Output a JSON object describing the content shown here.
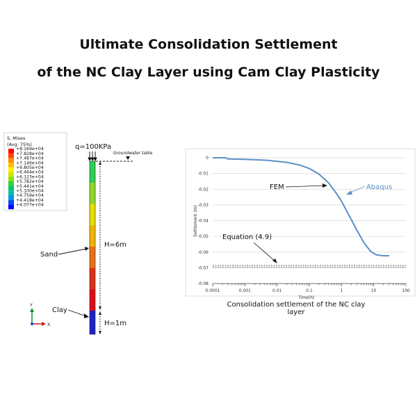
{
  "title": {
    "line1": "Ultimate Consolidation Settlement",
    "line2": "of the NC Clay Layer using Cam Clay Plasticity"
  },
  "legend": {
    "header": "S, Mises",
    "subheader": "(Avg: 75%)",
    "values": [
      "+8.169e+04",
      "+7.828e+04",
      "+7.487e+04",
      "+7.146e+04",
      "+6.805e+04",
      "+6.464e+04",
      "+6.123e+04",
      "+5.782e+04",
      "+5.441e+04",
      "+5.100e+04",
      "+4.759e+04",
      "+4.418e+04",
      "+4.077e+04"
    ],
    "colors": [
      "#ff0000",
      "#ff4500",
      "#ff8c00",
      "#ffc000",
      "#ffee00",
      "#cce800",
      "#88e000",
      "#33d040",
      "#00c86a",
      "#00c0b0",
      "#0098e0",
      "#0050f0",
      "#0000ff"
    ]
  },
  "model": {
    "load_label": "q=100KPa",
    "groundwater_label": "Groundwater table",
    "sand_label": "Sand",
    "clay_label": "Clay",
    "sand_height": "H=6m",
    "clay_height": "H=1m",
    "axis_y": "Y",
    "axis_x": "X",
    "column_colors": [
      "#2fcf52",
      "#8bd82a",
      "#e5e000",
      "#f0b400",
      "#e8701a",
      "#dd3016",
      "#de0d17",
      "#1a22c8"
    ]
  },
  "chart_data": {
    "type": "line",
    "xlabel": "Time(h)",
    "ylabel": "Settlement (m)",
    "xscale": "log",
    "xlim": [
      0.0001,
      100
    ],
    "ylim": [
      -0.08,
      0
    ],
    "x_ticks": [
      "0.0001",
      "0.001",
      "0.01",
      "0.1",
      "1",
      "10",
      "100"
    ],
    "y_ticks": [
      "0",
      "-0.01",
      "-0.02",
      "-0.03",
      "-0.04",
      "-0.05",
      "-0.06",
      "-0.07",
      "-0.08"
    ],
    "series": [
      {
        "name": "Abaqus",
        "color": "#5b8fc7",
        "x": [
          0.0001,
          0.00025,
          0.0003,
          0.001,
          0.005,
          0.02,
          0.05,
          0.1,
          0.2,
          0.4,
          0.7,
          1,
          1.5,
          2,
          3,
          5,
          8,
          12,
          20,
          30
        ],
        "y": [
          0,
          0,
          -0.0008,
          -0.001,
          -0.0016,
          -0.0029,
          -0.0046,
          -0.0068,
          -0.0104,
          -0.016,
          -0.0228,
          -0.0275,
          -0.0345,
          -0.0392,
          -0.046,
          -0.054,
          -0.0595,
          -0.0617,
          -0.0623,
          -0.0623
        ]
      },
      {
        "name": "Equation (4.9)",
        "color": "#7f7f7f",
        "x": [
          0.0001,
          100
        ],
        "y": [
          -0.069,
          -0.069
        ]
      }
    ],
    "annotations": [
      "FEM",
      "Abaqus",
      "Equation (4.9)"
    ],
    "caption": "Consolidation settlement of the NC clay layer"
  }
}
